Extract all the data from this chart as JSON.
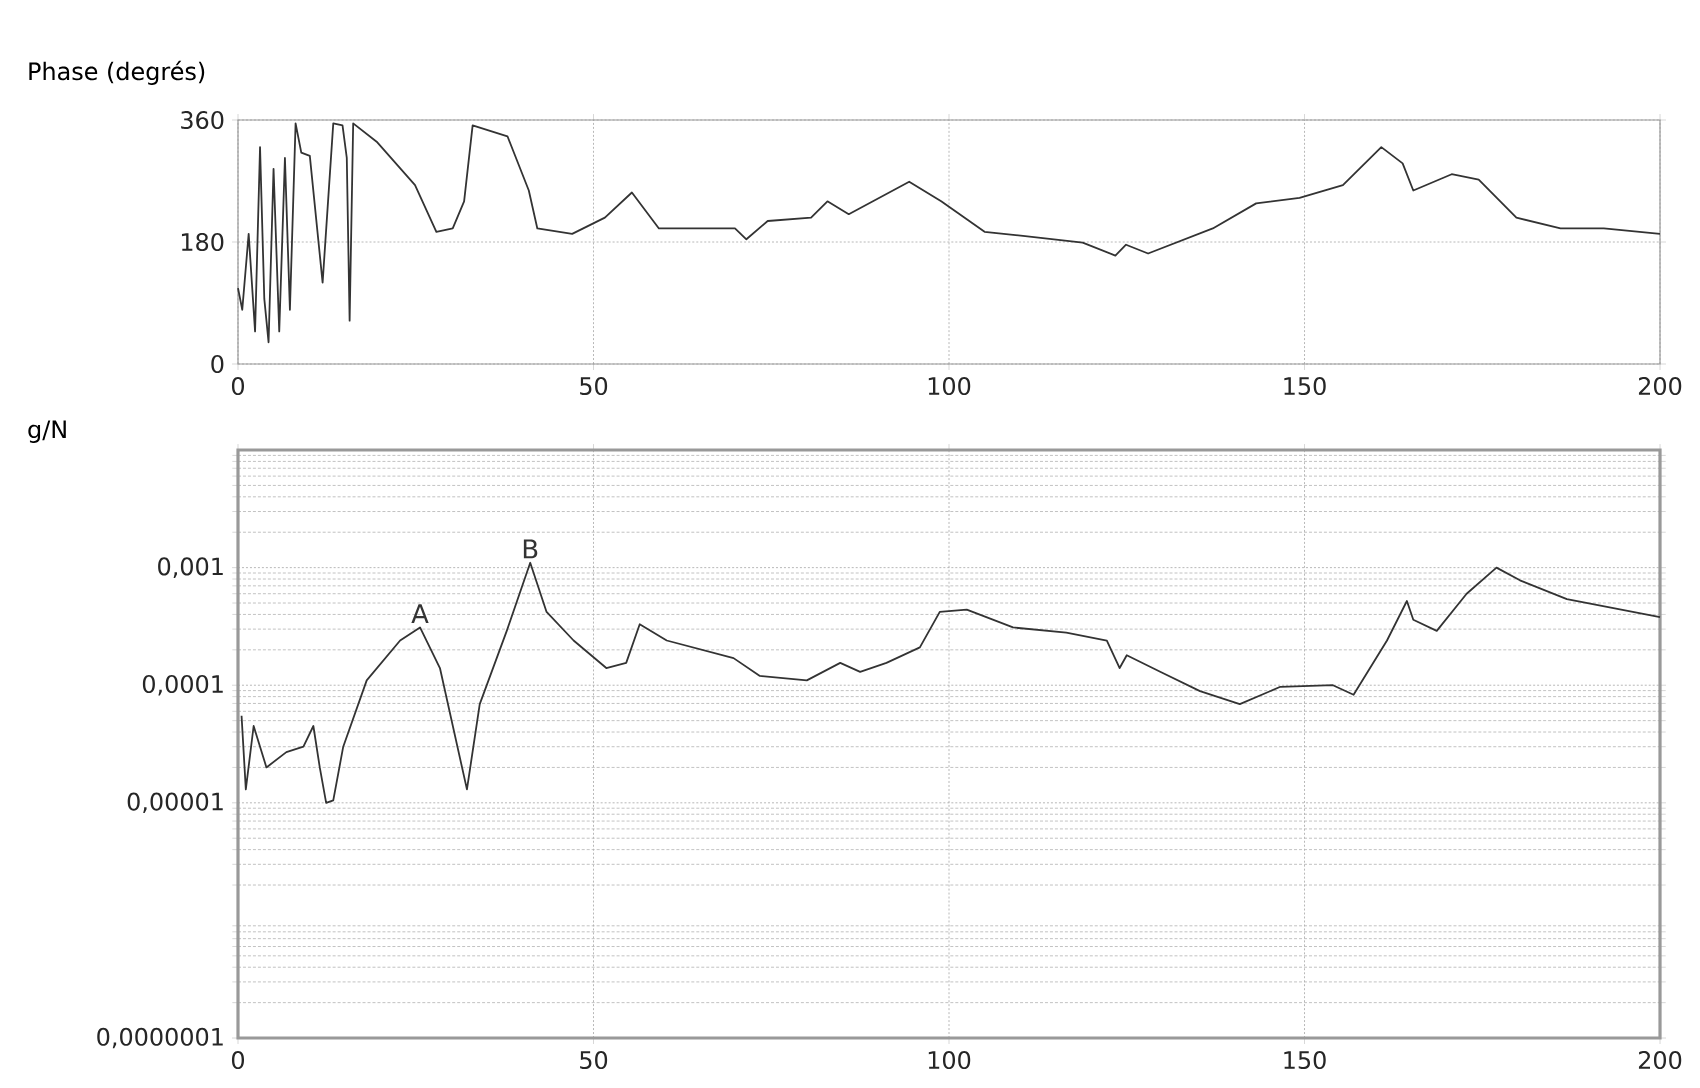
{
  "chart_data": [
    {
      "type": "line",
      "ylabel": "Phase (degrés)",
      "xlim": [
        0,
        200
      ],
      "xticks": [
        0,
        50,
        100,
        150,
        200
      ],
      "ylim": [
        0,
        360
      ],
      "yticks": [
        0,
        180,
        360
      ],
      "grid": true,
      "color": "#333333",
      "x": [
        0,
        0.6,
        1.5,
        2.4,
        3.1,
        3.7,
        4.3,
        5,
        5.8,
        6.6,
        7.3,
        8.1,
        8.9,
        10.1,
        11.9,
        13.4,
        14.7,
        15.3,
        15.7,
        16.2,
        19.5,
        24.9,
        27.9,
        30.2,
        31.8,
        33,
        37.9,
        40.9,
        42.1,
        47,
        51.6,
        55.4,
        59.2,
        69.9,
        71.5,
        74.5,
        80.6,
        82.9,
        85.9,
        94.4,
        98.9,
        105,
        110.4,
        118.8,
        123.4,
        124.9,
        128,
        137.1,
        143.2,
        149.3,
        155.4,
        160.8,
        163.8,
        165.3,
        170.7,
        174.5,
        179.8,
        186,
        192.1,
        200
      ],
      "values": [
        112,
        80,
        192,
        48,
        320,
        96,
        32,
        288,
        48,
        304,
        80,
        355,
        312,
        307,
        120,
        355,
        352,
        304,
        64,
        355,
        328,
        264,
        195,
        200,
        240,
        352,
        336,
        256,
        200,
        192,
        216,
        253,
        200,
        200,
        184,
        211,
        216,
        240,
        221,
        269,
        240,
        195,
        189,
        179,
        160,
        176,
        163,
        200,
        237,
        245,
        264,
        320,
        296,
        256,
        280,
        272,
        216,
        200,
        200,
        192
      ]
    },
    {
      "type": "line",
      "ylabel": "g/N",
      "log": "y",
      "xlim": [
        0,
        200
      ],
      "xticks": [
        0,
        50,
        100,
        150,
        200
      ],
      "ylim": [
        1e-07,
        0.01
      ],
      "yticks": [
        {
          "value": 1e-07,
          "label": "0,0000001"
        },
        {
          "value": 1e-05,
          "label": "0,00001"
        },
        {
          "value": 0.0001,
          "label": "0,0001"
        },
        {
          "value": 0.001,
          "label": "0,001"
        }
      ],
      "grid": true,
      "color": "#333333",
      "annotations": [
        {
          "text": "A",
          "x": 25.6,
          "y": 0.00031
        },
        {
          "text": "B",
          "x": 41.1,
          "y": 0.0011
        }
      ],
      "x": [
        0.5,
        1.1,
        2.2,
        4,
        6.8,
        9.2,
        10.6,
        11.5,
        12.4,
        13.4,
        14.8,
        18.1,
        22.8,
        25.6,
        28.4,
        32.2,
        34,
        37.8,
        41.1,
        43.4,
        47.2,
        51.8,
        54.6,
        56.5,
        60.3,
        69.7,
        73.4,
        80,
        84.7,
        87.5,
        91.2,
        95.9,
        98.7,
        102.5,
        109,
        116.5,
        122.2,
        124,
        125,
        129.7,
        135.3,
        140.9,
        146.6,
        154,
        156.9,
        161.6,
        164.4,
        165.3,
        168.6,
        172.8,
        177,
        180.3,
        186.9,
        200
      ],
      "values": [
        5.5e-05,
        1.3e-05,
        4.5e-05,
        2e-05,
        2.7e-05,
        3e-05,
        4.5e-05,
        2e-05,
        1e-05,
        1.05e-05,
        3e-05,
        0.00011,
        0.00024,
        0.00031,
        0.00014,
        1.3e-05,
        6.9e-05,
        0.00029,
        0.0011,
        0.00042,
        0.00024,
        0.00014,
        0.000155,
        0.00033,
        0.00024,
        0.00017,
        0.00012,
        0.00011,
        0.000155,
        0.00013,
        0.000155,
        0.00021,
        0.00042,
        0.00044,
        0.00031,
        0.00028,
        0.00024,
        0.00014,
        0.00018,
        0.00013,
        8.9e-05,
        6.9e-05,
        9.7e-05,
        0.0001,
        8.3e-05,
        0.00024,
        0.00052,
        0.00036,
        0.00029,
        0.0006,
        0.001,
        0.00078,
        0.00054,
        0.00038
      ]
    }
  ]
}
